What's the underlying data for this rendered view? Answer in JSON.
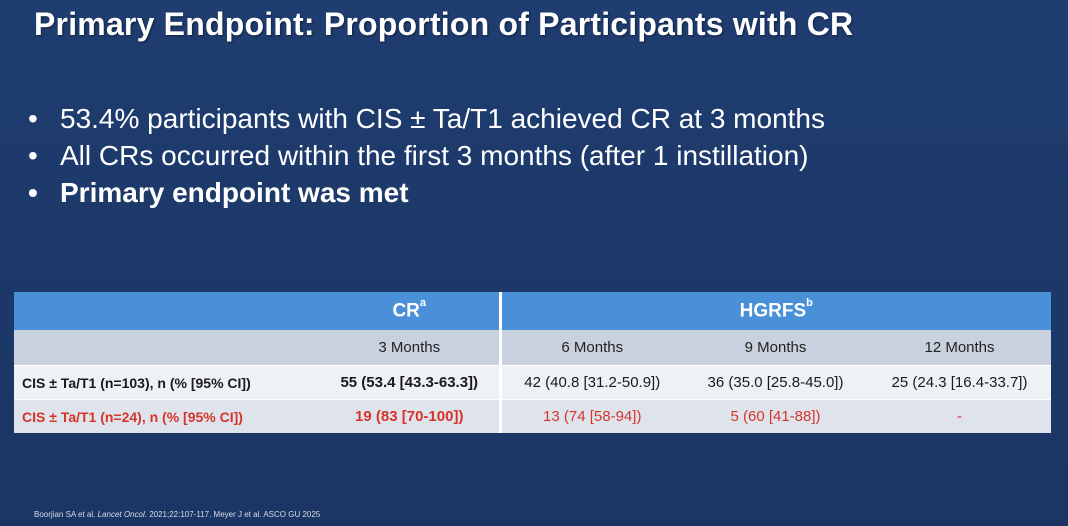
{
  "title": "Primary Endpoint: Proportion of Participants with CR",
  "bullets": [
    {
      "text": "53.4% participants with CIS ± Ta/T1 achieved CR at 3 months",
      "bold": false
    },
    {
      "text": "All CRs occurred within the first 3 months (after 1 instillation)",
      "bold": false
    },
    {
      "text": "Primary endpoint was met",
      "bold": true
    }
  ],
  "bullet_glyph": "•",
  "table": {
    "header_cr": "CR",
    "header_cr_sup": "a",
    "header_hgrfs": "HGRFS",
    "header_hgrfs_sup": "b",
    "subheaders": [
      "3 Months",
      "6 Months",
      "9 Months",
      "12 Months"
    ],
    "rows": [
      {
        "label": "CIS ± Ta/T1 (n=103), n (% [95% CI])",
        "cells": [
          "55 (53.4 [43.3-63.3])",
          "42 (40.8 [31.2-50.9])",
          "36 (35.0 [25.8-45.0])",
          "25 (24.3 [16.4-33.7])"
        ],
        "color": "#1a1a1a"
      },
      {
        "label": "CIS ± Ta/T1 (n=24), n (% [95% CI])",
        "cells": [
          "19 (83 [70-100])",
          "13 (74 [58-94])",
          "5 (60 [41-88])",
          "-"
        ],
        "color": "#d6342a"
      }
    ]
  },
  "footnote": {
    "part1": "Boorjian SA et al. ",
    "journal": "Lancet Oncol.",
    "part2": " 2021;22:107-117. Meyer J et al. ASCO GU 2025"
  },
  "colors": {
    "background": "#1d3a6b",
    "table_header": "#4a90d9",
    "subheader_row": "#c9d1df",
    "highlight_red": "#d6342a"
  }
}
